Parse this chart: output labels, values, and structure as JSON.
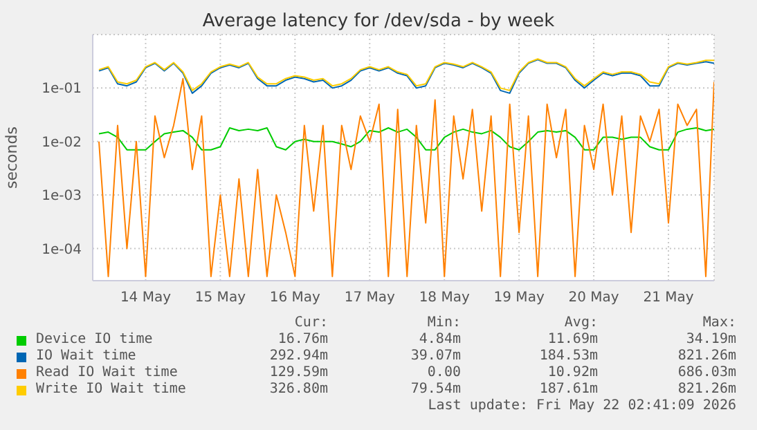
{
  "chart_data": {
    "type": "line",
    "title": "Average latency for /dev/sda - by week",
    "ylabel": "seconds",
    "log": true,
    "grid": true,
    "legend": "bottom",
    "marker": "none",
    "line_style": "solid",
    "ylim": [
      2.5e-05,
      1
    ],
    "yticks": [
      {
        "value": 0.0001,
        "label": "1e-04"
      },
      {
        "value": 0.001,
        "label": "1e-03"
      },
      {
        "value": 0.01,
        "label": "1e-02"
      },
      {
        "value": 0.1,
        "label": "1e-01"
      }
    ],
    "xlim": [
      "2026-05-13T19:00",
      "2026-05-22T02:40"
    ],
    "xticks": [
      {
        "value": "2026-05-14T12:00",
        "label": "14 May"
      },
      {
        "value": "2026-05-15T12:00",
        "label": "15 May"
      },
      {
        "value": "2026-05-16T12:00",
        "label": "16 May"
      },
      {
        "value": "2026-05-17T12:00",
        "label": "17 May"
      },
      {
        "value": "2026-05-18T12:00",
        "label": "18 May"
      },
      {
        "value": "2026-05-19T12:00",
        "label": "19 May"
      },
      {
        "value": "2026-05-20T12:00",
        "label": "20 May"
      },
      {
        "value": "2026-05-21T12:00",
        "label": "21 May"
      }
    ],
    "x": [
      "2026-05-13T21:00",
      "2026-05-14T00:00",
      "2026-05-14T03:00",
      "2026-05-14T06:00",
      "2026-05-14T09:00",
      "2026-05-14T12:00",
      "2026-05-14T15:00",
      "2026-05-14T18:00",
      "2026-05-14T21:00",
      "2026-05-15T00:00",
      "2026-05-15T03:00",
      "2026-05-15T06:00",
      "2026-05-15T09:00",
      "2026-05-15T12:00",
      "2026-05-15T15:00",
      "2026-05-15T18:00",
      "2026-05-15T21:00",
      "2026-05-16T00:00",
      "2026-05-16T03:00",
      "2026-05-16T06:00",
      "2026-05-16T09:00",
      "2026-05-16T12:00",
      "2026-05-16T15:00",
      "2026-05-16T18:00",
      "2026-05-16T21:00",
      "2026-05-17T00:00",
      "2026-05-17T03:00",
      "2026-05-17T06:00",
      "2026-05-17T09:00",
      "2026-05-17T12:00",
      "2026-05-17T15:00",
      "2026-05-17T18:00",
      "2026-05-17T21:00",
      "2026-05-18T00:00",
      "2026-05-18T03:00",
      "2026-05-18T06:00",
      "2026-05-18T09:00",
      "2026-05-18T12:00",
      "2026-05-18T15:00",
      "2026-05-18T18:00",
      "2026-05-18T21:00",
      "2026-05-19T00:00",
      "2026-05-19T03:00",
      "2026-05-19T06:00",
      "2026-05-19T09:00",
      "2026-05-19T12:00",
      "2026-05-19T15:00",
      "2026-05-19T18:00",
      "2026-05-19T21:00",
      "2026-05-20T00:00",
      "2026-05-20T03:00",
      "2026-05-20T06:00",
      "2026-05-20T09:00",
      "2026-05-20T12:00",
      "2026-05-20T15:00",
      "2026-05-20T18:00",
      "2026-05-20T21:00",
      "2026-05-21T00:00",
      "2026-05-21T03:00",
      "2026-05-21T06:00",
      "2026-05-21T09:00",
      "2026-05-21T12:00",
      "2026-05-21T15:00",
      "2026-05-21T18:00",
      "2026-05-21T21:00",
      "2026-05-22T00:00",
      "2026-05-22T02:40"
    ],
    "series": [
      {
        "name": "Device IO time",
        "color": "#00cc00",
        "values": [
          0.014,
          0.015,
          0.012,
          0.007,
          0.007,
          0.007,
          0.01,
          0.014,
          0.015,
          0.016,
          0.012,
          0.007,
          0.007,
          0.008,
          0.018,
          0.016,
          0.017,
          0.016,
          0.018,
          0.008,
          0.007,
          0.01,
          0.011,
          0.01,
          0.01,
          0.01,
          0.009,
          0.008,
          0.01,
          0.016,
          0.015,
          0.018,
          0.015,
          0.017,
          0.012,
          0.007,
          0.007,
          0.012,
          0.015,
          0.017,
          0.015,
          0.014,
          0.016,
          0.012,
          0.008,
          0.007,
          0.01,
          0.015,
          0.016,
          0.015,
          0.016,
          0.012,
          0.007,
          0.007,
          0.012,
          0.012,
          0.011,
          0.012,
          0.012,
          0.008,
          0.007,
          0.007,
          0.015,
          0.017,
          0.018,
          0.016,
          0.017
        ]
      },
      {
        "name": "IO Wait time",
        "color": "#0066b3",
        "values": [
          0.21,
          0.24,
          0.12,
          0.11,
          0.13,
          0.24,
          0.29,
          0.21,
          0.29,
          0.19,
          0.08,
          0.11,
          0.19,
          0.24,
          0.27,
          0.24,
          0.29,
          0.15,
          0.11,
          0.11,
          0.14,
          0.16,
          0.15,
          0.13,
          0.14,
          0.1,
          0.11,
          0.14,
          0.21,
          0.24,
          0.21,
          0.24,
          0.19,
          0.17,
          0.1,
          0.11,
          0.24,
          0.29,
          0.27,
          0.24,
          0.29,
          0.24,
          0.19,
          0.09,
          0.08,
          0.19,
          0.29,
          0.34,
          0.29,
          0.29,
          0.24,
          0.14,
          0.1,
          0.14,
          0.19,
          0.17,
          0.19,
          0.19,
          0.17,
          0.11,
          0.11,
          0.24,
          0.29,
          0.27,
          0.29,
          0.31,
          0.29
        ]
      },
      {
        "name": "Read IO Wait time",
        "color": "#ff8000",
        "values": [
          0.01,
          3e-05,
          0.02,
          0.0001,
          0.01,
          3e-05,
          0.03,
          0.005,
          0.02,
          0.15,
          0.003,
          0.03,
          3e-05,
          0.001,
          3e-05,
          0.002,
          3e-05,
          0.003,
          3e-05,
          0.001,
          0.0002,
          3e-05,
          0.02,
          0.0005,
          0.02,
          3e-05,
          0.02,
          0.003,
          0.03,
          0.01,
          0.05,
          3e-05,
          0.04,
          3e-05,
          0.02,
          0.0003,
          0.06,
          3e-05,
          0.03,
          0.002,
          0.04,
          0.0005,
          0.03,
          3e-05,
          0.05,
          0.0002,
          0.03,
          3e-05,
          0.05,
          0.005,
          0.04,
          3e-05,
          0.02,
          0.003,
          0.05,
          0.001,
          0.03,
          0.0002,
          0.03,
          0.01,
          0.04,
          0.0003,
          0.05,
          0.02,
          0.04,
          3e-05,
          0.13
        ]
      },
      {
        "name": "Write IO Wait time",
        "color": "#ffcc00",
        "values": [
          0.22,
          0.25,
          0.13,
          0.12,
          0.14,
          0.25,
          0.3,
          0.22,
          0.3,
          0.2,
          0.09,
          0.12,
          0.2,
          0.25,
          0.28,
          0.25,
          0.3,
          0.16,
          0.12,
          0.12,
          0.15,
          0.17,
          0.16,
          0.14,
          0.15,
          0.11,
          0.12,
          0.15,
          0.22,
          0.25,
          0.22,
          0.25,
          0.2,
          0.18,
          0.11,
          0.12,
          0.25,
          0.3,
          0.28,
          0.25,
          0.3,
          0.25,
          0.2,
          0.1,
          0.09,
          0.2,
          0.3,
          0.35,
          0.3,
          0.3,
          0.25,
          0.15,
          0.11,
          0.15,
          0.2,
          0.18,
          0.2,
          0.2,
          0.18,
          0.13,
          0.12,
          0.25,
          0.3,
          0.28,
          0.3,
          0.33,
          0.33
        ]
      }
    ],
    "annotations": [
      "Cur:",
      "Min:",
      "Avg:",
      "Max:",
      "16.76m",
      "4.84m",
      "11.69m",
      "34.19m",
      "292.94m",
      "39.07m",
      "184.53m",
      "821.26m",
      "129.59m",
      "0.00",
      "10.92m",
      "686.03m",
      "326.80m",
      "79.54m",
      "187.61m",
      "821.26m",
      "Last update: Fri May 22 02:41:09 2026"
    ]
  }
}
